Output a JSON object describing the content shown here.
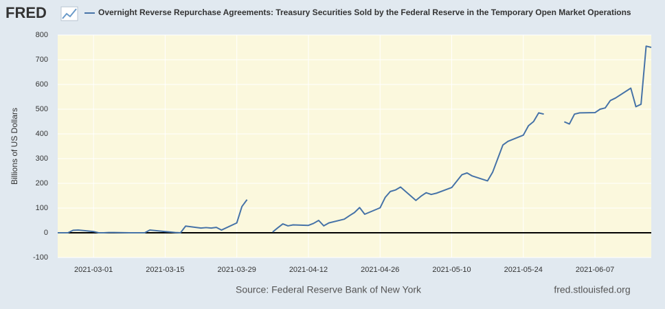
{
  "chart_data": {
    "type": "line",
    "brand": "FRED",
    "title": "Overnight Reverse Repurchase Agreements: Treasury Securities Sold by the Federal Reserve in the Temporary Open Market Operations",
    "y_label": "Billions of US Dollars",
    "source": "Source: Federal Reserve Bank of New York",
    "site": "fred.stlouisfed.org",
    "x": [
      "2021-02-22",
      "2021-02-23",
      "2021-02-24",
      "2021-02-25",
      "2021-02-26",
      "2021-03-01",
      "2021-03-02",
      "2021-03-03",
      "2021-03-04",
      "2021-03-05",
      "2021-03-08",
      "2021-03-09",
      "2021-03-10",
      "2021-03-11",
      "2021-03-12",
      "2021-03-15",
      "2021-03-16",
      "2021-03-17",
      "2021-03-18",
      "2021-03-19",
      "2021-03-22",
      "2021-03-23",
      "2021-03-24",
      "2021-03-25",
      "2021-03-26",
      "2021-03-29",
      "2021-03-30",
      "2021-03-31",
      "2021-04-01",
      "2021-04-02",
      "2021-04-05",
      "2021-04-06",
      "2021-04-07",
      "2021-04-08",
      "2021-04-09",
      "2021-04-12",
      "2021-04-13",
      "2021-04-14",
      "2021-04-15",
      "2021-04-16",
      "2021-04-19",
      "2021-04-20",
      "2021-04-21",
      "2021-04-22",
      "2021-04-23",
      "2021-04-26",
      "2021-04-27",
      "2021-04-28",
      "2021-04-29",
      "2021-04-30",
      "2021-05-03",
      "2021-05-04",
      "2021-05-05",
      "2021-05-06",
      "2021-05-07",
      "2021-05-10",
      "2021-05-11",
      "2021-05-12",
      "2021-05-13",
      "2021-05-14",
      "2021-05-17",
      "2021-05-18",
      "2021-05-19",
      "2021-05-20",
      "2021-05-21",
      "2021-05-24",
      "2021-05-25",
      "2021-05-26",
      "2021-05-27",
      "2021-05-28",
      "2021-05-31",
      "2021-06-01",
      "2021-06-02",
      "2021-06-03",
      "2021-06-04",
      "2021-06-07",
      "2021-06-08",
      "2021-06-09",
      "2021-06-10",
      "2021-06-11",
      "2021-06-14",
      "2021-06-15",
      "2021-06-16",
      "2021-06-17",
      "2021-06-18"
    ],
    "series": [
      {
        "name": "Overnight Reverse Repurchase Agreements: Treasury Securities Sold by the Federal Reserve in the Temporary Open Market Operations",
        "color": "#4572a7",
        "values": [
          0,
          0,
          0,
          10,
          11,
          5,
          0,
          0,
          1,
          1,
          0,
          0,
          0,
          0,
          11,
          5,
          3,
          1,
          0,
          27,
          19,
          21,
          19,
          22,
          11,
          40,
          106,
          134,
          null,
          null,
          3,
          20,
          36,
          28,
          32,
          30,
          38,
          50,
          28,
          40,
          55,
          69,
          82,
          102,
          75,
          101,
          143,
          167,
          173,
          185,
          131,
          148,
          162,
          155,
          160,
          183,
          209,
          235,
          242,
          230,
          210,
          245,
          300,
          355,
          370,
          395,
          433,
          450,
          485,
          480,
          null,
          449,
          440,
          480,
          485,
          486,
          500,
          505,
          535,
          545,
          585,
          510,
          520,
          755,
          750
        ]
      }
    ],
    "xlim": [
      "2021-02-22",
      "2021-06-18"
    ],
    "xticks": [
      "2021-03-01",
      "2021-03-15",
      "2021-03-29",
      "2021-04-12",
      "2021-04-26",
      "2021-05-10",
      "2021-05-24",
      "2021-06-07"
    ],
    "ylim": [
      -100,
      800
    ],
    "yticks": [
      800,
      700,
      600,
      500,
      400,
      300,
      200,
      100,
      0,
      -100
    ],
    "grid": true
  }
}
